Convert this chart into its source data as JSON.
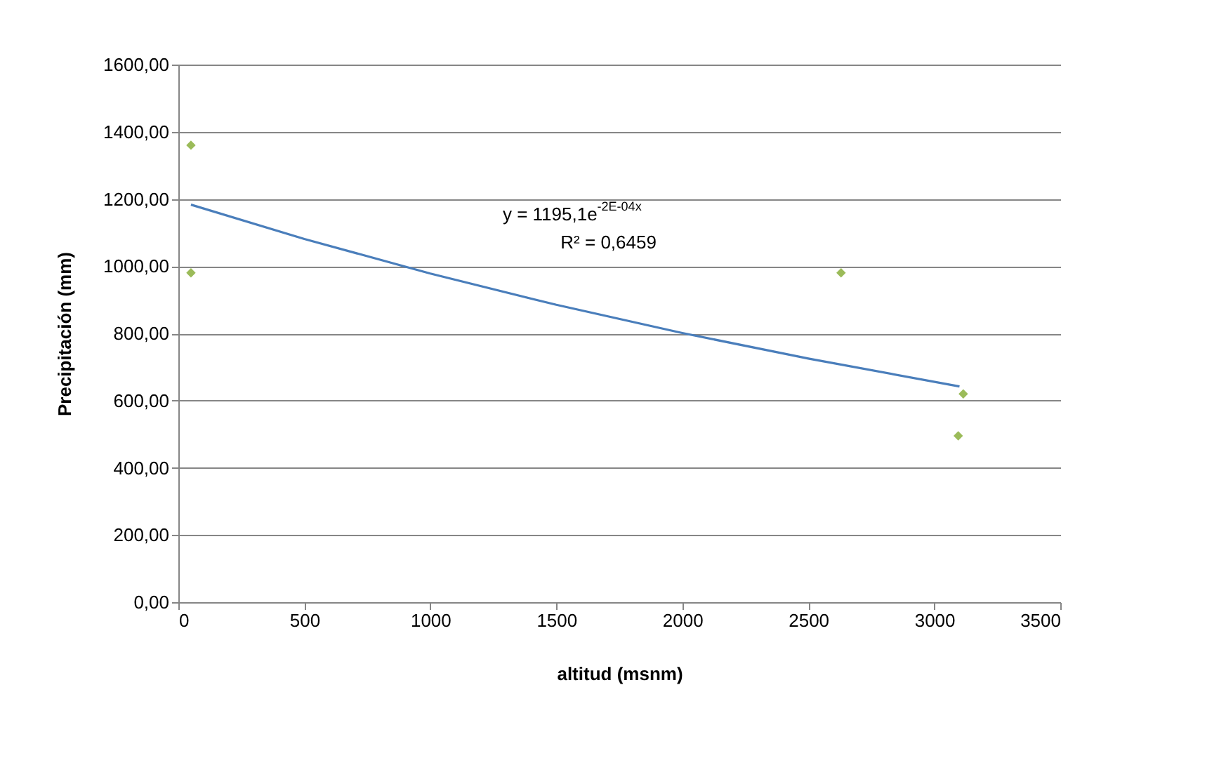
{
  "chart_data": {
    "type": "scatter",
    "xlabel": "altitud (msnm)",
    "ylabel": "Precipitación (mm)",
    "xlim": [
      0,
      3500
    ],
    "xticks": [
      0,
      500,
      1000,
      1500,
      2000,
      2500,
      3000,
      3500
    ],
    "ylim": [
      0,
      1600
    ],
    "yticks": [
      {
        "value": 0,
        "label": "0,00"
      },
      {
        "value": 200,
        "label": "200,00"
      },
      {
        "value": 400,
        "label": "400,00"
      },
      {
        "value": 600,
        "label": "600,00"
      },
      {
        "value": 800,
        "label": "800,00"
      },
      {
        "value": 1000,
        "label": "1000,00"
      },
      {
        "value": 1200,
        "label": "1200,00"
      },
      {
        "value": 1400,
        "label": "1400,00"
      },
      {
        "value": 1600,
        "label": "1600,00"
      }
    ],
    "grid": "y",
    "series": [
      {
        "color": "#9bbb59",
        "marker": "diamond",
        "x": [
          50,
          50,
          2630,
          3115,
          3095
        ],
        "values": [
          1360,
          980,
          980,
          620,
          495
        ]
      },
      {
        "type": "line",
        "color": "#4a7ebb",
        "marker": "none",
        "line_style": "solid",
        "x": [
          50,
          500,
          1000,
          1500,
          2000,
          2500,
          3100
        ],
        "values": [
          1183,
          1081,
          978,
          885,
          801,
          725,
          642
        ]
      }
    ],
    "annotations": [
      "y = 1195,1e$^{-2E-04x}$",
      "R² = 0,6459"
    ]
  }
}
